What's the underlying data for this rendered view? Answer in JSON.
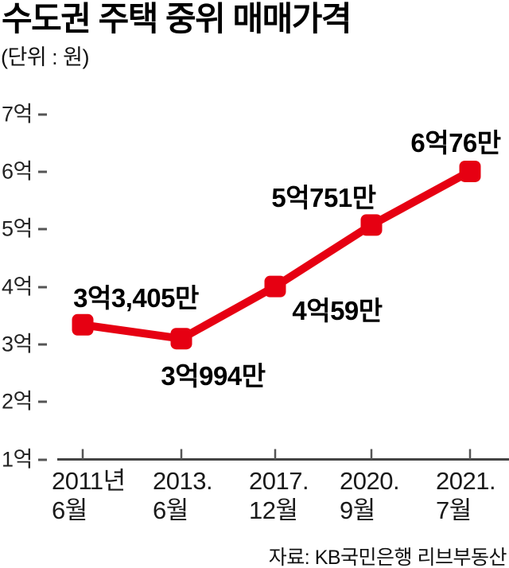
{
  "page": {
    "title": "수도권 주택 중위 매매가격",
    "unit_note": "(단위 : 원)",
    "source": "자료: KB국민은행 리브부동산"
  },
  "chart_data": {
    "type": "line",
    "title": "수도권 주택 중위 매매가격",
    "unit": "원",
    "categories": [
      "2011년 6월",
      "2013. 6월",
      "2017. 12월",
      "2020. 9월",
      "2021. 7월"
    ],
    "x_tick_lines": [
      [
        "2011년",
        "6월"
      ],
      [
        "2013.",
        "6월"
      ],
      [
        "2017.",
        "12월"
      ],
      [
        "2020.",
        "9월"
      ],
      [
        "2021.",
        "7월"
      ]
    ],
    "values_eok": [
      3.3405,
      3.0994,
      4.0059,
      5.0751,
      6.0076
    ],
    "point_labels": [
      "3억3,405만",
      "3억994만",
      "4억59만",
      "5억751만",
      "6억76만"
    ],
    "point_label_placement": [
      "above",
      "below",
      "below",
      "above",
      "above"
    ],
    "y_tick_labels": [
      "7억",
      "6억",
      "5억",
      "4억",
      "3억",
      "2억",
      "1억"
    ],
    "y_tick_values": [
      7,
      6,
      5,
      4,
      3,
      2,
      1
    ],
    "ylim": [
      1,
      7
    ],
    "grid": false,
    "legend": false,
    "line_color": "#e60012",
    "axis_color": "#444444",
    "tick_color": "#555555",
    "marker_shape": "rounded-square",
    "source": "자료: KB국민은행 리브부동산"
  }
}
